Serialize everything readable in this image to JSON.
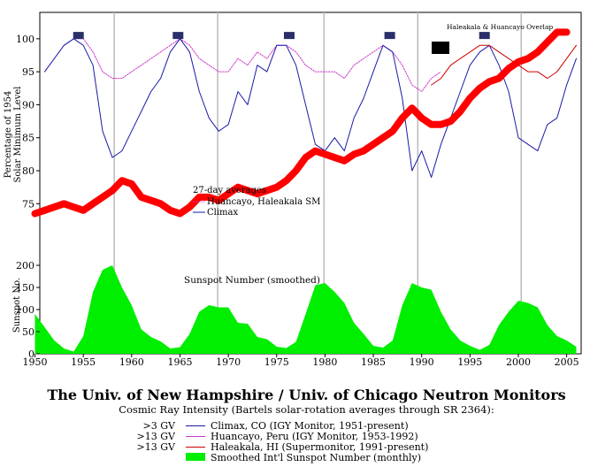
{
  "chart_data": {
    "type": "line",
    "title": "The Univ. of New Hampshire / Univ. of Chicago Neutron Monitors",
    "subtitle": "Cosmic Ray Intensity (Bartels solar-rotation averages through SR 2364):",
    "x_ticks": [
      "1950",
      "1955",
      "1960",
      "1965",
      "1970",
      "1975",
      "1980",
      "1985",
      "1990",
      "1995",
      "2000",
      "2005"
    ],
    "xlim": [
      1950.5,
      2006.5
    ],
    "top_panel": {
      "ylabel": [
        "Percentage of 1954",
        "Solar Minimum Level"
      ],
      "ylim": [
        67,
        104
      ],
      "y_ticks": [
        "75",
        "80",
        "85",
        "90",
        "95",
        "100"
      ],
      "inset_title": "27-day averages",
      "inset_legend": [
        "Huancayo, Haleakala SM",
        "Climax"
      ],
      "corner_label": "Haleakala & Huancayo Overlap"
    },
    "bottom_panel": {
      "ylabel": "Sunspot No.",
      "ylim": [
        0,
        220
      ],
      "y_ticks": [
        "0",
        "50",
        "100",
        "150",
        "200"
      ],
      "annotation": "Sunspot Number (smoothed)"
    },
    "series": [
      {
        "name": "Climax, CO (IGY Monitor, 1951-present)",
        "gv": ">3 GV",
        "color": "#1a1aa8",
        "x": [
          1951,
          1952,
          1953,
          1954,
          1955,
          1956,
          1957,
          1958,
          1959,
          1960,
          1961,
          1962,
          1963,
          1964,
          1965,
          1966,
          1967,
          1968,
          1969,
          1970,
          1971,
          1972,
          1973,
          1974,
          1975,
          1976,
          1977,
          1978,
          1979,
          1980,
          1981,
          1982,
          1983,
          1984,
          1985,
          1986,
          1987,
          1988,
          1989,
          1990,
          1991,
          1992,
          1993,
          1994,
          1995,
          1996,
          1997,
          1998,
          1999,
          2000,
          2001,
          2002,
          2003,
          2004,
          2005,
          2006
        ],
        "values": [
          95,
          97,
          99,
          100,
          99,
          96,
          86,
          82,
          83,
          86,
          89,
          92,
          94,
          98,
          100,
          98,
          92,
          88,
          86,
          87,
          92,
          90,
          96,
          95,
          99,
          99,
          96,
          90,
          84,
          83,
          85,
          83,
          88,
          91,
          95,
          99,
          98,
          91,
          80,
          83,
          79,
          84,
          88,
          92,
          96,
          98,
          99,
          96,
          92,
          85,
          84,
          83,
          87,
          88,
          93,
          97
        ]
      },
      {
        "name": "Huancayo, Peru (IGY Monitor, 1953-1992)",
        "gv": ">13 GV",
        "color": "#cc33cc",
        "x": [
          1953,
          1954,
          1955,
          1956,
          1957,
          1958,
          1959,
          1960,
          1961,
          1962,
          1963,
          1964,
          1965,
          1966,
          1967,
          1968,
          1969,
          1970,
          1971,
          1972,
          1973,
          1974,
          1975,
          1976,
          1977,
          1978,
          1979,
          1980,
          1981,
          1982,
          1983,
          1984,
          1985,
          1986,
          1987,
          1988,
          1989,
          1990,
          1991,
          1992
        ],
        "values": [
          99,
          100,
          100,
          98,
          95,
          94,
          94,
          95,
          96,
          97,
          98,
          99,
          100,
          99,
          97,
          96,
          95,
          95,
          97,
          96,
          98,
          97,
          99,
          99,
          98,
          96,
          95,
          95,
          95,
          94,
          96,
          97,
          98,
          99,
          98,
          96,
          93,
          92,
          94,
          95
        ]
      },
      {
        "name": "Haleakala, HI (Supermonitor, 1991-present)",
        "gv": ">13 GV",
        "color": "#cc0000",
        "x": [
          1991,
          1992,
          1993,
          1994,
          1995,
          1996,
          1997,
          1998,
          1999,
          2000,
          2001,
          2002,
          2003,
          2004,
          2005,
          2006
        ],
        "values": [
          93,
          94,
          96,
          97,
          98,
          99,
          99,
          98,
          97,
          96,
          95,
          95,
          94,
          95,
          97,
          99
        ]
      },
      {
        "name": "Smoothed Int'l Sunspot Number (monthly)",
        "gv": "",
        "color": "#00ee00",
        "x": [
          1950,
          1951,
          1952,
          1953,
          1954,
          1955,
          1956,
          1957,
          1958,
          1959,
          1960,
          1961,
          1962,
          1963,
          1964,
          1965,
          1966,
          1967,
          1968,
          1969,
          1970,
          1971,
          1972,
          1973,
          1974,
          1975,
          1976,
          1977,
          1978,
          1979,
          1980,
          1981,
          1982,
          1983,
          1984,
          1985,
          1986,
          1987,
          1988,
          1989,
          1990,
          1991,
          1992,
          1993,
          1994,
          1995,
          1996,
          1997,
          1998,
          1999,
          2000,
          2001,
          2002,
          2003,
          2004,
          2005,
          2006
        ],
        "values": [
          90,
          60,
          30,
          12,
          5,
          40,
          140,
          190,
          200,
          150,
          110,
          55,
          38,
          28,
          12,
          15,
          45,
          95,
          110,
          105,
          105,
          70,
          68,
          38,
          33,
          16,
          13,
          27,
          90,
          155,
          160,
          140,
          115,
          70,
          45,
          18,
          14,
          30,
          110,
          160,
          150,
          145,
          95,
          55,
          30,
          18,
          9,
          20,
          65,
          95,
          120,
          115,
          105,
          65,
          40,
          30,
          16
        ]
      },
      {
        "name": "Smoothed overlay",
        "color": "#ff0000",
        "x": [
          1950,
          1951,
          1952,
          1953,
          1954,
          1955,
          1956,
          1957,
          1958,
          1959,
          1960,
          1961,
          1962,
          1963,
          1964,
          1965,
          1966,
          1967,
          1968,
          1969,
          1970,
          1971,
          1972,
          1973,
          1974,
          1975,
          1976,
          1977,
          1978,
          1979,
          1980,
          1981,
          1982,
          1983,
          1984,
          1985,
          1986,
          1987,
          1988,
          1989,
          1990,
          1991,
          1992,
          1993,
          1994,
          1995,
          1996,
          1997,
          1998,
          1999,
          2000,
          2001,
          2002,
          2003,
          2004,
          2005
        ],
        "values": [
          73.5,
          74,
          74.5,
          75,
          74.5,
          74,
          75,
          76,
          77,
          78.5,
          78,
          76,
          75.5,
          75,
          74,
          73.5,
          74.5,
          76,
          76,
          75.5,
          76.5,
          77.5,
          77,
          76.5,
          77,
          77.5,
          78.5,
          80,
          82,
          83,
          82.5,
          82,
          81.5,
          82.5,
          83,
          84,
          85,
          86,
          88,
          89.5,
          88,
          87,
          87,
          87.5,
          89,
          91,
          92.5,
          93.5,
          94,
          95.5,
          96.5,
          97,
          98,
          99.5,
          101,
          101
        ]
      }
    ],
    "legend": [
      {
        "gv": ">3 GV",
        "label": "Climax, CO (IGY Monitor, 1951-present)",
        "color": "#1a1aa8"
      },
      {
        "gv": ">13 GV",
        "label": "Huancayo, Peru (IGY Monitor, 1953-1992)",
        "color": "#cc33cc"
      },
      {
        "gv": ">13 GV",
        "label": "Haleakala, HI (Supermonitor, 1991-present)",
        "color": "#cc0000"
      },
      {
        "gv": "",
        "label": "Smoothed Int'l Sunspot Number (monthly)",
        "color": "#00ee00"
      }
    ],
    "solar_min_markers": [
      1954.5,
      1964.8,
      1976.3,
      1986.7,
      1996.5
    ],
    "solar_max_markers": [
      1958.2,
      1968.9,
      1979.9,
      1989.6,
      2000.3
    ]
  },
  "colors": {
    "climax": "#1a1aa8",
    "huancayo": "#cc33cc",
    "haleakala": "#cc0000",
    "sunspot": "#00ee00",
    "overlay": "#ff0000",
    "marker": "#2a2f6a",
    "grid": "#bbbbbb"
  }
}
